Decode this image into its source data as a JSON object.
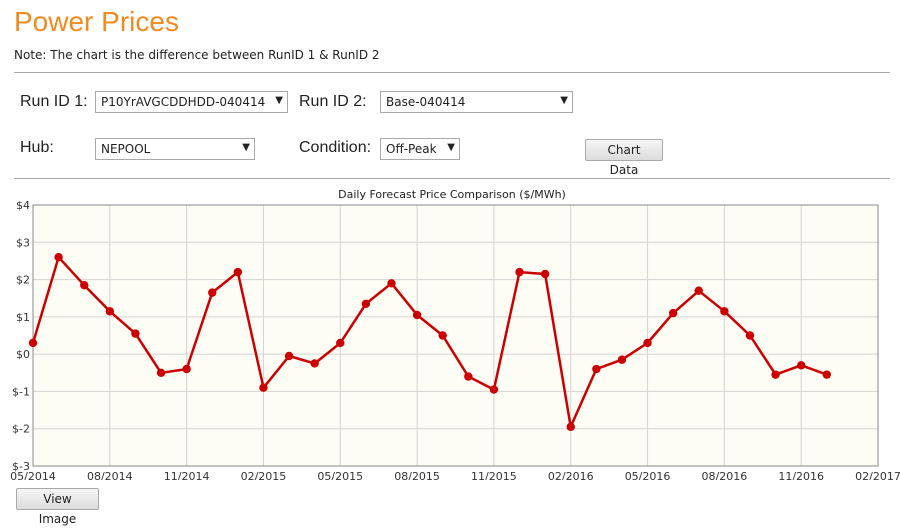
{
  "header": {
    "title": "Power Prices",
    "note": "Note: The chart is the difference between RunID 1 & RunID 2"
  },
  "form": {
    "run_id_1_label": "Run ID 1:",
    "run_id_1_value": "P10YrAVGCDDHDD-040414",
    "run_id_2_label": "Run ID 2:",
    "run_id_2_value": "Base-040414",
    "hub_label": "Hub:",
    "hub_value": "NEPOOL",
    "condition_label": "Condition:",
    "condition_value": "Off-Peak",
    "chart_data_button": "Chart Data"
  },
  "footer": {
    "view_image_button": "View Image"
  },
  "colors": {
    "title": "#f28a1e",
    "series": "#cc0000",
    "plot_bg": "#fdfcf5"
  },
  "chart_data": {
    "type": "line",
    "title": "Daily Forecast Price Comparison ($/MWh)",
    "xlabel": "",
    "ylabel": "",
    "ylim": [
      -3,
      4
    ],
    "grid": true,
    "y_ticks": [
      4,
      3,
      2,
      1,
      0,
      -1,
      -2,
      -3
    ],
    "y_tick_labels": [
      "$4",
      "$3",
      "$2",
      "$1",
      "$0",
      "$-1",
      "$-2",
      "$-3"
    ],
    "x_ticks": [
      "2014-05",
      "2014-08",
      "2014-11",
      "2015-02",
      "2015-05",
      "2015-08",
      "2015-11",
      "2016-02",
      "2016-05",
      "2016-08",
      "2016-11",
      "2017-02"
    ],
    "x_tick_labels": [
      "05/2014",
      "08/2014",
      "11/2014",
      "02/2015",
      "05/2015",
      "08/2015",
      "11/2015",
      "02/2016",
      "05/2016",
      "08/2016",
      "11/2016",
      "02/2017"
    ],
    "series": [
      {
        "x": [
          "2014-05",
          "2014-06",
          "2014-07",
          "2014-08",
          "2014-09",
          "2014-10",
          "2014-11",
          "2014-12",
          "2015-01",
          "2015-02",
          "2015-03",
          "2015-04",
          "2015-05",
          "2015-06",
          "2015-07",
          "2015-08",
          "2015-09",
          "2015-10",
          "2015-11",
          "2015-12",
          "2016-01",
          "2016-02",
          "2016-03",
          "2016-04",
          "2016-05",
          "2016-06",
          "2016-07",
          "2016-08",
          "2016-09",
          "2016-10",
          "2016-11",
          "2016-12"
        ],
        "values": [
          0.3,
          2.6,
          1.85,
          1.15,
          0.55,
          -0.5,
          -0.4,
          1.65,
          2.2,
          -0.9,
          -0.05,
          -0.25,
          0.3,
          1.35,
          1.9,
          1.05,
          0.5,
          -0.6,
          -0.95,
          2.2,
          2.15,
          -1.95,
          -0.4,
          -0.15,
          0.3,
          1.1,
          1.7,
          1.15,
          0.5,
          -0.55,
          -0.3,
          -0.55
        ]
      }
    ]
  }
}
